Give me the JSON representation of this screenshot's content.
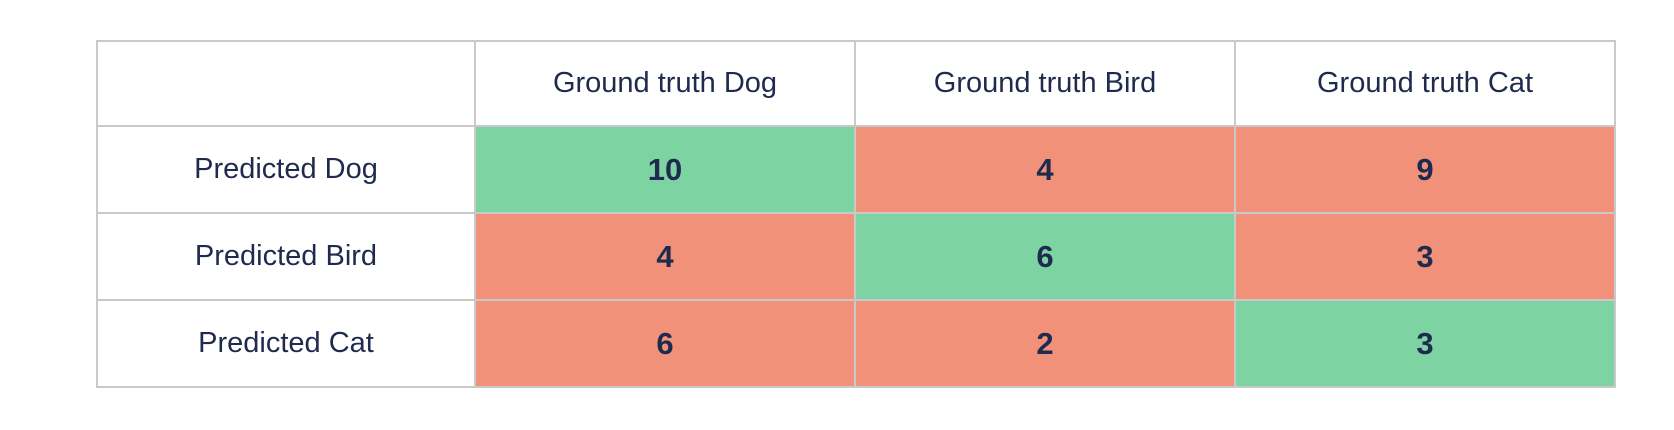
{
  "colors": {
    "correct_bg": "#7dd3a2",
    "incorrect_bg": "#f1917a",
    "text": "#1f2b4e",
    "border": "#c9c9c9",
    "header_bg": "#ffffff",
    "page_bg": "#ffffff"
  },
  "table": {
    "corner_label": "",
    "column_headers": [
      "Ground truth Dog",
      "Ground truth Bird",
      "Ground truth Cat"
    ],
    "rows": [
      {
        "label": "Predicted Dog",
        "cells": [
          {
            "value": "10",
            "state": "correct"
          },
          {
            "value": "4",
            "state": "incorrect"
          },
          {
            "value": "9",
            "state": "incorrect"
          }
        ]
      },
      {
        "label": "Predicted Bird",
        "cells": [
          {
            "value": "4",
            "state": "incorrect"
          },
          {
            "value": "6",
            "state": "correct"
          },
          {
            "value": "3",
            "state": "incorrect"
          }
        ]
      },
      {
        "label": "Predicted Cat",
        "cells": [
          {
            "value": "6",
            "state": "incorrect"
          },
          {
            "value": "2",
            "state": "incorrect"
          },
          {
            "value": "3",
            "state": "correct"
          }
        ]
      }
    ]
  },
  "chart_data": {
    "type": "heatmap",
    "title": "",
    "x_categories": [
      "Ground truth Dog",
      "Ground truth Bird",
      "Ground truth Cat"
    ],
    "y_categories": [
      "Predicted Dog",
      "Predicted Bird",
      "Predicted Cat"
    ],
    "values": [
      [
        10,
        4,
        9
      ],
      [
        4,
        6,
        3
      ],
      [
        6,
        2,
        3
      ]
    ],
    "cell_states": [
      [
        "correct",
        "incorrect",
        "incorrect"
      ],
      [
        "incorrect",
        "correct",
        "incorrect"
      ],
      [
        "incorrect",
        "incorrect",
        "correct"
      ]
    ],
    "legend": "diagonal (correct) = green, off-diagonal (incorrect) = salmon"
  }
}
